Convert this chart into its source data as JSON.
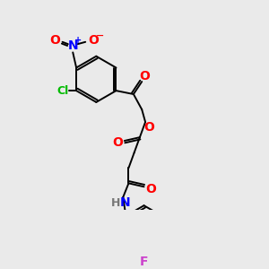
{
  "bg_color": "#eaeaea",
  "bond_color": "#000000",
  "colors": {
    "O": "#ff0000",
    "N": "#0000ff",
    "Cl": "#00bb00",
    "F": "#cc44cc",
    "H": "#777777",
    "C": "#000000",
    "plus": "#0000ff",
    "minus": "#ff0000"
  },
  "fig_size": [
    3.0,
    3.0
  ],
  "dpi": 100
}
